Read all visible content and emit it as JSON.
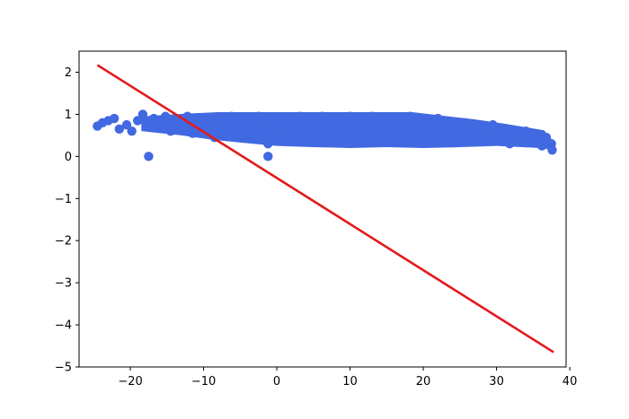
{
  "chart_data": {
    "type": "scatter",
    "title": "",
    "xlabel": "",
    "ylabel": "",
    "xlim": [
      -27,
      39.5
    ],
    "ylim": [
      -5,
      2.5
    ],
    "grid": false,
    "xticks": [
      -20,
      -10,
      0,
      10,
      20,
      30,
      40
    ],
    "yticks": [
      2,
      1,
      0,
      -1,
      -2,
      -3,
      -4,
      -5
    ],
    "xtick_labels": [
      "−20",
      "−10",
      "0",
      "10",
      "20",
      "30",
      "40"
    ],
    "ytick_labels": [
      "2",
      "1",
      "0",
      "−1",
      "−2",
      "−3",
      "−4",
      "−5"
    ],
    "series": [
      {
        "kind": "scatter",
        "color": "#4169e1",
        "points": [
          [
            -24.5,
            0.72
          ],
          [
            -23.8,
            0.8
          ],
          [
            -23,
            0.85
          ],
          [
            -22.2,
            0.9
          ],
          [
            -21.5,
            0.65
          ],
          [
            -20.5,
            0.75
          ],
          [
            -19.8,
            0.6
          ],
          [
            -19,
            0.85
          ],
          [
            -18.3,
            1.0
          ],
          [
            -17.5,
            0.7
          ],
          [
            -17.5,
            0.0
          ],
          [
            -16.8,
            0.9
          ],
          [
            -16,
            0.75
          ],
          [
            -15.2,
            0.95
          ],
          [
            -14.5,
            0.6
          ],
          [
            -13.8,
            0.85
          ],
          [
            -13,
            0.75
          ],
          [
            -12.2,
            0.95
          ],
          [
            -11.5,
            0.55
          ],
          [
            -10.8,
            0.7
          ],
          [
            -10,
            0.9
          ],
          [
            -9.2,
            0.6
          ],
          [
            -8.5,
            0.45
          ],
          [
            -7.8,
            0.8
          ],
          [
            -7,
            0.5
          ],
          [
            -6.2,
            0.95
          ],
          [
            -5.5,
            0.65
          ],
          [
            -4.8,
            0.45
          ],
          [
            -4,
            0.85
          ],
          [
            -3.2,
            0.55
          ],
          [
            -2.5,
            0.95
          ],
          [
            -1.8,
            0.7
          ],
          [
            -1.2,
            0.3
          ],
          [
            -1.2,
            0.0
          ],
          [
            -0.5,
            0.6
          ],
          [
            0.2,
            0.9
          ],
          [
            1,
            0.45
          ],
          [
            1.8,
            0.75
          ],
          [
            2.5,
            0.35
          ],
          [
            3.2,
            0.95
          ],
          [
            4,
            0.55
          ],
          [
            4.8,
            0.8
          ],
          [
            5.5,
            0.4
          ],
          [
            6.2,
            0.95
          ],
          [
            7,
            0.6
          ],
          [
            7.8,
            0.85
          ],
          [
            8.5,
            0.35
          ],
          [
            9.2,
            0.7
          ],
          [
            10,
            0.95
          ],
          [
            10.8,
            0.45
          ],
          [
            11.5,
            0.8
          ],
          [
            12.2,
            0.55
          ],
          [
            13,
            0.95
          ],
          [
            13.8,
            0.4
          ],
          [
            14.5,
            0.75
          ],
          [
            15.2,
            0.6
          ],
          [
            16,
            0.9
          ],
          [
            16.8,
            0.35
          ],
          [
            17.5,
            0.7
          ],
          [
            18.2,
            0.95
          ],
          [
            19,
            0.5
          ],
          [
            19.8,
            0.8
          ],
          [
            20.5,
            0.4
          ],
          [
            21.2,
            0.65
          ],
          [
            22,
            0.9
          ],
          [
            22.8,
            0.45
          ],
          [
            23.5,
            0.75
          ],
          [
            24.2,
            0.35
          ],
          [
            25,
            0.6
          ],
          [
            25.8,
            0.8
          ],
          [
            26.5,
            0.45
          ],
          [
            27.2,
            0.7
          ],
          [
            28,
            0.35
          ],
          [
            28.8,
            0.55
          ],
          [
            29.5,
            0.75
          ],
          [
            30.2,
            0.4
          ],
          [
            31,
            0.6
          ],
          [
            31.8,
            0.3
          ],
          [
            32.5,
            0.55
          ],
          [
            33.2,
            0.45
          ],
          [
            34,
            0.6
          ],
          [
            34.8,
            0.35
          ],
          [
            35.5,
            0.5
          ],
          [
            36.2,
            0.25
          ],
          [
            36.8,
            0.45
          ],
          [
            37.5,
            0.3
          ],
          [
            37.6,
            0.15
          ]
        ]
      },
      {
        "kind": "line",
        "color": "#e31a1c",
        "points": [
          [
            -24.5,
            2.17
          ],
          [
            37.8,
            -4.65
          ]
        ]
      }
    ]
  }
}
